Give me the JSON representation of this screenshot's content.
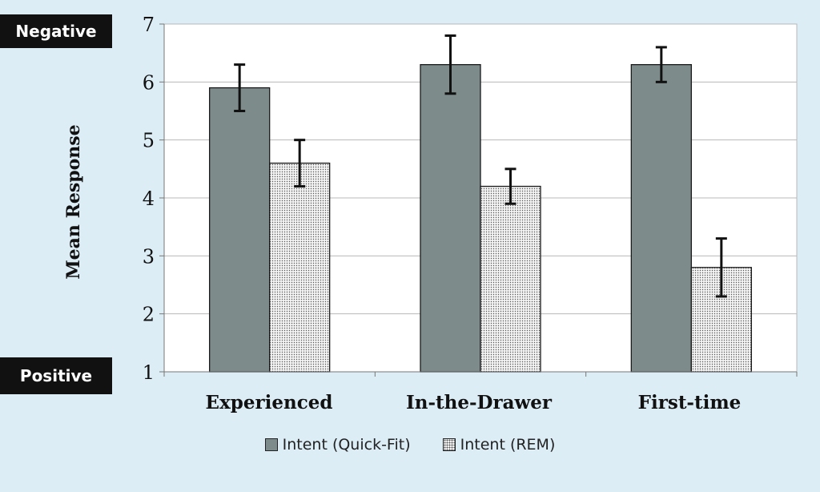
{
  "tags": {
    "negative": "Negative",
    "positive": "Positive"
  },
  "colors": {
    "background": "#dcedf6",
    "quick_fit": "#7d8b8a",
    "rem": "#eeeeee",
    "gridline": "#b8b8b8"
  },
  "chart_data": {
    "type": "bar",
    "title": "",
    "xlabel": "",
    "ylabel": "Mean Response",
    "ylim": [
      1,
      7
    ],
    "yticks": [
      1,
      2,
      3,
      4,
      5,
      6,
      7
    ],
    "grid": true,
    "legend_position": "bottom",
    "categories": [
      "Experienced",
      "In-the-Drawer",
      "First-time"
    ],
    "series": [
      {
        "name": "Intent (Quick-Fit)",
        "values": [
          5.9,
          6.3,
          6.3
        ],
        "error_low": [
          5.5,
          5.8,
          6.0
        ],
        "error_high": [
          6.3,
          6.8,
          6.6
        ]
      },
      {
        "name": "Intent (REM)",
        "values": [
          4.6,
          4.2,
          2.8
        ],
        "error_low": [
          4.2,
          3.9,
          2.3
        ],
        "error_high": [
          5.0,
          4.5,
          3.3
        ]
      }
    ]
  }
}
